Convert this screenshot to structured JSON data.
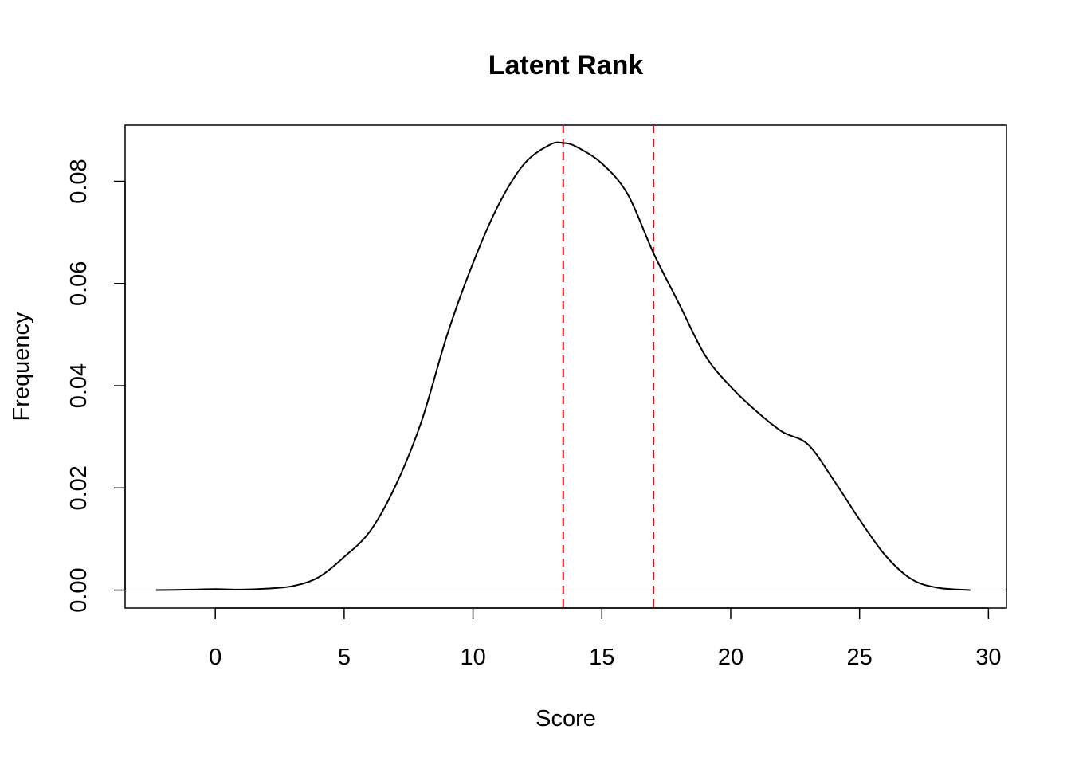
{
  "chart_data": {
    "type": "line",
    "title": "Latent Rank",
    "xlabel": "Score",
    "ylabel": "Frequency",
    "xlim": [
      -3.5,
      30.7
    ],
    "ylim": [
      -0.0035,
      0.091
    ],
    "x_ticks": [
      0,
      5,
      10,
      15,
      20,
      25,
      30
    ],
    "y_ticks": [
      0.0,
      0.02,
      0.04,
      0.06,
      0.08
    ],
    "y_tick_labels": [
      "0.00",
      "0.02",
      "0.04",
      "0.06",
      "0.08"
    ],
    "grid": false,
    "colors": {
      "density": "#000000",
      "vlines": "#e8000b",
      "baseline": "#d3d3d3"
    },
    "series": [
      {
        "x": [
          -2.3,
          -1,
          0,
          1,
          2,
          3,
          4,
          5,
          6,
          7,
          8,
          9,
          10,
          11,
          12,
          13,
          13.5,
          14,
          15,
          16,
          17,
          18,
          19,
          20,
          21,
          22,
          23,
          24,
          25,
          26,
          27,
          28,
          29.3
        ],
        "y": [
          0.0,
          0.0001,
          0.0002,
          0.0001,
          0.0003,
          0.0008,
          0.0025,
          0.0065,
          0.0115,
          0.0205,
          0.033,
          0.05,
          0.064,
          0.0755,
          0.0835,
          0.0872,
          0.0875,
          0.0868,
          0.0835,
          0.0775,
          0.066,
          0.056,
          0.046,
          0.0398,
          0.035,
          0.031,
          0.0285,
          0.0215,
          0.0138,
          0.0068,
          0.0022,
          0.0005,
          0.0
        ]
      }
    ],
    "vertical_lines": [
      13.5,
      17.0
    ],
    "baseline_y": 0
  }
}
